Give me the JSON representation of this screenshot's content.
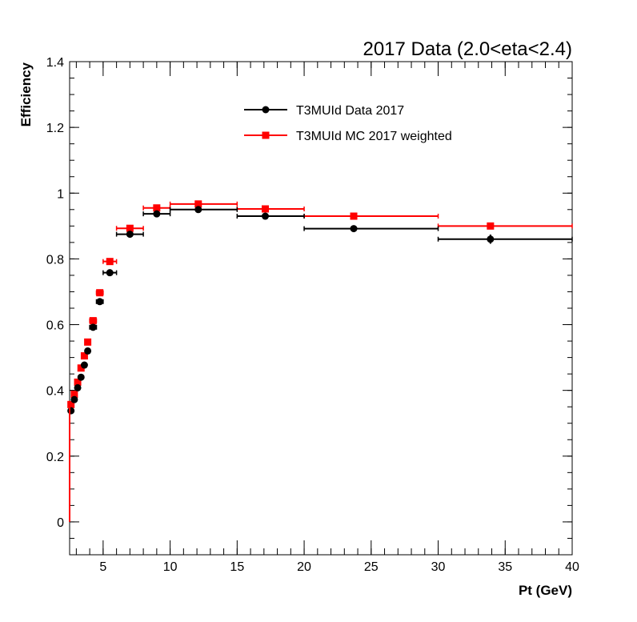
{
  "chart_data": {
    "type": "scatter",
    "title": "2017 Data (2.0<eta<2.4)",
    "xlabel": "Pt (GeV)",
    "ylabel": "Efficiency",
    "xlim": [
      2.5,
      40
    ],
    "ylim": [
      -0.1,
      1.4
    ],
    "x_ticks": [
      5,
      10,
      15,
      20,
      25,
      30,
      35,
      40
    ],
    "x_tick_labels": [
      "5",
      "10",
      "15",
      "20",
      "25",
      "30",
      "35",
      "40"
    ],
    "y_ticks": [
      0,
      0.2,
      0.4,
      0.6,
      0.8,
      1,
      1.2,
      1.4
    ],
    "y_tick_labels": [
      "0",
      "0.2",
      "0.4",
      "0.6",
      "0.8",
      "1",
      "1.2",
      "1.4"
    ],
    "grid": false,
    "legend_position": "top-center",
    "series": [
      {
        "name": "T3MUId Data 2017",
        "color": "#000000",
        "marker": "circle",
        "points": [
          {
            "x": 2.6,
            "xlo": 2.5,
            "xhi": 2.75,
            "y": 0.338,
            "yerr": 0.006
          },
          {
            "x": 2.85,
            "xlo": 2.75,
            "xhi": 3.0,
            "y": 0.372,
            "yerr": 0.006
          },
          {
            "x": 3.1,
            "xlo": 3.0,
            "xhi": 3.25,
            "y": 0.408,
            "yerr": 0.006
          },
          {
            "x": 3.35,
            "xlo": 3.25,
            "xhi": 3.5,
            "y": 0.44,
            "yerr": 0.006
          },
          {
            "x": 3.6,
            "xlo": 3.5,
            "xhi": 3.75,
            "y": 0.477,
            "yerr": 0.006
          },
          {
            "x": 3.85,
            "xlo": 3.75,
            "xhi": 4.0,
            "y": 0.52,
            "yerr": 0.006
          },
          {
            "x": 4.25,
            "xlo": 4.0,
            "xhi": 4.5,
            "y": 0.592,
            "yerr": 0.005
          },
          {
            "x": 4.75,
            "xlo": 4.5,
            "xhi": 5.0,
            "y": 0.67,
            "yerr": 0.005
          },
          {
            "x": 5.5,
            "xlo": 5.0,
            "xhi": 6.0,
            "y": 0.758,
            "yerr": 0.004
          },
          {
            "x": 7.0,
            "xlo": 6.0,
            "xhi": 8.0,
            "y": 0.875,
            "yerr": 0.004
          },
          {
            "x": 9.0,
            "xlo": 8.0,
            "xhi": 10.0,
            "y": 0.937,
            "yerr": 0.004
          },
          {
            "x": 12.1,
            "xlo": 10.0,
            "xhi": 15.0,
            "y": 0.95,
            "yerr": 0.003
          },
          {
            "x": 17.1,
            "xlo": 15.0,
            "xhi": 20.0,
            "y": 0.93,
            "yerr": 0.004
          },
          {
            "x": 23.7,
            "xlo": 20.0,
            "xhi": 30.0,
            "y": 0.892,
            "yerr": 0.006
          },
          {
            "x": 33.9,
            "xlo": 30.0,
            "xhi": 40.0,
            "y": 0.86,
            "yerr": 0.014
          }
        ]
      },
      {
        "name": "T3MUId MC 2017 weighted",
        "color": "#ff0000",
        "marker": "square",
        "points": [
          {
            "x": 2.6,
            "xlo": 2.5,
            "xhi": 2.75,
            "y": 0.357,
            "yerr": 0.004
          },
          {
            "x": 2.85,
            "xlo": 2.75,
            "xhi": 3.0,
            "y": 0.388,
            "yerr": 0.004
          },
          {
            "x": 3.1,
            "xlo": 3.0,
            "xhi": 3.25,
            "y": 0.425,
            "yerr": 0.004
          },
          {
            "x": 3.35,
            "xlo": 3.25,
            "xhi": 3.5,
            "y": 0.468,
            "yerr": 0.004
          },
          {
            "x": 3.6,
            "xlo": 3.5,
            "xhi": 3.75,
            "y": 0.505,
            "yerr": 0.004
          },
          {
            "x": 3.85,
            "xlo": 3.75,
            "xhi": 4.0,
            "y": 0.547,
            "yerr": 0.004
          },
          {
            "x": 4.25,
            "xlo": 4.0,
            "xhi": 4.5,
            "y": 0.612,
            "yerr": 0.004
          },
          {
            "x": 4.75,
            "xlo": 4.5,
            "xhi": 5.0,
            "y": 0.697,
            "yerr": 0.003
          },
          {
            "x": 5.5,
            "xlo": 5.0,
            "xhi": 6.0,
            "y": 0.792,
            "yerr": 0.003
          },
          {
            "x": 7.0,
            "xlo": 6.0,
            "xhi": 8.0,
            "y": 0.893,
            "yerr": 0.003
          },
          {
            "x": 9.0,
            "xlo": 8.0,
            "xhi": 10.0,
            "y": 0.955,
            "yerr": 0.002
          },
          {
            "x": 12.1,
            "xlo": 10.0,
            "xhi": 15.0,
            "y": 0.967,
            "yerr": 0.002
          },
          {
            "x": 17.1,
            "xlo": 15.0,
            "xhi": 20.0,
            "y": 0.952,
            "yerr": 0.002
          },
          {
            "x": 23.7,
            "xlo": 20.0,
            "xhi": 30.0,
            "y": 0.93,
            "yerr": 0.003
          },
          {
            "x": 33.9,
            "xlo": 30.0,
            "xhi": 40.0,
            "y": 0.9,
            "yerr": 0.004
          }
        ]
      }
    ]
  }
}
